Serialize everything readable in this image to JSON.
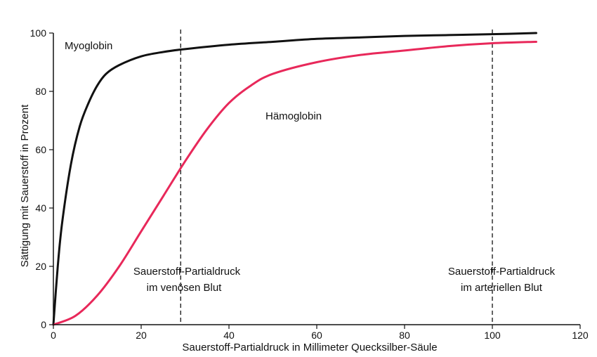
{
  "chart_data": {
    "type": "line",
    "title": "",
    "xlabel": "Sauerstoff-Partialdruck in Millimeter Quecksilber-Säule",
    "ylabel": "Sättigung mit Sauerstoff in Prozent",
    "xlim": [
      0,
      120
    ],
    "ylim": [
      0,
      100
    ],
    "xticks": [
      "0",
      "20",
      "40",
      "60",
      "80",
      "100",
      "120"
    ],
    "yticks": [
      "0",
      "20",
      "40",
      "60",
      "80",
      "100"
    ],
    "grid": false,
    "series": [
      {
        "name": "Myoglobin",
        "color": "#111111",
        "x": [
          0,
          1,
          2,
          4,
          6,
          8,
          10,
          12,
          15,
          20,
          25,
          30,
          40,
          50,
          60,
          70,
          80,
          90,
          100,
          110
        ],
        "y": [
          0,
          20,
          35,
          55,
          68,
          76,
          82,
          86,
          89,
          92,
          93.5,
          94.5,
          96,
          97,
          98,
          98.5,
          99,
          99.3,
          99.6,
          100
        ]
      },
      {
        "name": "Hämoglobin",
        "color": "#e8285a",
        "x": [
          0,
          5,
          10,
          15,
          20,
          25,
          30,
          35,
          40,
          45,
          50,
          60,
          70,
          80,
          90,
          100,
          110
        ],
        "y": [
          0,
          3,
          10,
          20,
          32,
          44,
          56,
          67,
          76,
          82,
          86,
          90,
          92.5,
          94,
          95.5,
          96.5,
          97
        ]
      }
    ],
    "reference_lines": [
      {
        "x": 29,
        "label_lines": [
          "Sauerstoff-Partialdruck",
          "im venösen Blut"
        ]
      },
      {
        "x": 100,
        "label_lines": [
          "Sauerstoff-Partialdruck",
          "im arteriellen Blut"
        ]
      }
    ]
  }
}
